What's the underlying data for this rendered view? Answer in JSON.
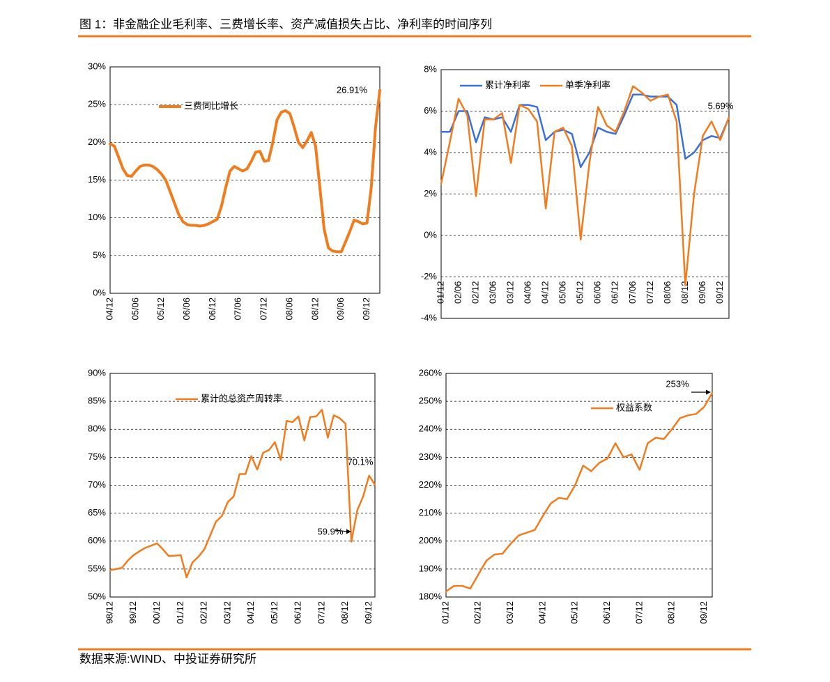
{
  "header": {
    "title": "图 1：非金融企业毛利率、三费增长率、资产减值损失占比、净利率的时间序列"
  },
  "footer": {
    "source": "数据来源:WIND、中投证券研究所"
  },
  "chart_data": [
    {
      "type": "line",
      "categories": [
        "04/12",
        null,
        null,
        null,
        null,
        null,
        "05/06",
        null,
        null,
        null,
        null,
        null,
        "05/12",
        null,
        null,
        null,
        null,
        null,
        "06/06",
        null,
        null,
        null,
        null,
        null,
        "06/12",
        null,
        null,
        null,
        null,
        null,
        "07/06",
        null,
        null,
        null,
        null,
        null,
        "07/12",
        null,
        null,
        null,
        null,
        null,
        "08/06",
        null,
        null,
        null,
        null,
        null,
        "08/12",
        null,
        null,
        null,
        null,
        null,
        "09/06",
        null,
        null,
        null,
        null,
        null,
        "09/12",
        null,
        null,
        null
      ],
      "series": [
        {
          "name": "三费同比增长",
          "color": "#f07c1e",
          "values": [
            19.8,
            19.5,
            18,
            16.5,
            15.6,
            15.5,
            16.2,
            16.8,
            17,
            17,
            16.8,
            16.4,
            15.8,
            15,
            13.5,
            12,
            10.5,
            9.5,
            9.1,
            9,
            9,
            8.9,
            9,
            9.2,
            9.5,
            9.8,
            11.5,
            14,
            16.2,
            16.8,
            16.5,
            16.2,
            16.5,
            17.5,
            18.7,
            18.8,
            17.5,
            17.6,
            20,
            23,
            24,
            24.2,
            23.8,
            22,
            20,
            19.3,
            20.2,
            21.3,
            19.5,
            14,
            8.5,
            6,
            5.6,
            5.5,
            5.5,
            6.8,
            8.2,
            9.7,
            9.5,
            9.2,
            9.3,
            14,
            22,
            26.91
          ]
        }
      ],
      "ylim": [
        0,
        30
      ],
      "yticks": [
        {
          "value": 0,
          "label": "0%"
        },
        {
          "value": 5,
          "label": "5%"
        },
        {
          "value": 10,
          "label": "10%"
        },
        {
          "value": 15,
          "label": "15%"
        },
        {
          "value": 20,
          "label": "20%"
        },
        {
          "value": 25,
          "label": "25%"
        },
        {
          "value": 30,
          "label": "30%"
        }
      ],
      "grid": true,
      "annotations": [
        {
          "text": "26.91%"
        }
      ]
    },
    {
      "type": "line",
      "categories": [
        "01/12",
        null,
        "02/06",
        null,
        "02/12",
        null,
        "03/06",
        null,
        "03/12",
        null,
        "04/06",
        null,
        "04/12",
        null,
        "05/06",
        null,
        "05/12",
        null,
        "06/06",
        null,
        "06/12",
        null,
        "07/06",
        null,
        "07/12",
        null,
        "08/06",
        null,
        "08/12",
        null,
        "09/06",
        null,
        "09/12",
        null
      ],
      "series": [
        {
          "name": "累计净利率",
          "color": "#3a6fd8",
          "values": [
            5.0,
            5.0,
            6.0,
            6.0,
            4.5,
            5.7,
            5.6,
            5.7,
            5.0,
            6.3,
            6.3,
            6.2,
            4.6,
            5.0,
            5.1,
            4.9,
            3.3,
            4.0,
            5.2,
            5.0,
            4.9,
            5.8,
            6.8,
            6.8,
            6.7,
            6.7,
            6.7,
            6.3,
            3.7,
            4.0,
            4.6,
            4.8,
            4.7,
            5.69
          ]
        },
        {
          "name": "单季净利率",
          "color": "#f07c1e",
          "values": [
            2.5,
            4.5,
            6.6,
            5.8,
            1.9,
            5.6,
            5.6,
            5.9,
            3.5,
            6.3,
            6.1,
            5.5,
            1.3,
            5.0,
            5.2,
            4.3,
            -0.2,
            3.5,
            6.2,
            5.3,
            5.0,
            6.0,
            7.2,
            6.9,
            6.5,
            6.7,
            6.8,
            5.5,
            -2.4,
            2.0,
            4.8,
            5.5,
            4.6,
            5.69
          ]
        }
      ],
      "ylim": [
        -4,
        8
      ],
      "yticks": [
        {
          "value": -4,
          "label": "-4%"
        },
        {
          "value": -2,
          "label": "-2%"
        },
        {
          "value": 0,
          "label": "0%"
        },
        {
          "value": 2,
          "label": "2%"
        },
        {
          "value": 4,
          "label": "4%"
        },
        {
          "value": 6,
          "label": "6%"
        },
        {
          "value": 8,
          "label": "8%"
        }
      ],
      "grid": true,
      "annotations": [
        {
          "text": "5.69%"
        }
      ]
    },
    {
      "type": "line",
      "categories": [
        "98/12",
        null,
        null,
        null,
        "99/12",
        null,
        null,
        null,
        "00/12",
        null,
        null,
        null,
        "01/12",
        null,
        null,
        null,
        "02/12",
        null,
        null,
        null,
        "03/12",
        null,
        null,
        null,
        "04/12",
        null,
        null,
        null,
        "05/12",
        null,
        null,
        null,
        "06/12",
        null,
        null,
        null,
        "07/12",
        null,
        null,
        null,
        "08/12",
        null,
        null,
        null,
        "09/12",
        null
      ],
      "series": [
        {
          "name": "累计的总资产周转率",
          "color": "#f07c1e",
          "values": [
            54.8,
            55,
            55.2,
            56.5,
            57.5,
            58.2,
            58.8,
            59.2,
            59.6,
            58.5,
            57.3,
            57.4,
            57.5,
            53.5,
            56.2,
            57.2,
            58.5,
            61,
            63.5,
            64.5,
            67,
            68,
            72,
            72,
            75.2,
            72.8,
            75.8,
            76.3,
            77.7,
            74.5,
            81.5,
            81.3,
            82.3,
            78,
            82.2,
            82.3,
            83.5,
            78.5,
            82.5,
            82,
            81,
            59.9,
            65.5,
            68,
            71.7,
            70.1
          ]
        }
      ],
      "ylim": [
        50,
        90
      ],
      "yticks": [
        {
          "value": 50,
          "label": "50%"
        },
        {
          "value": 55,
          "label": "55%"
        },
        {
          "value": 60,
          "label": "60%"
        },
        {
          "value": 65,
          "label": "65%"
        },
        {
          "value": 70,
          "label": "70%"
        },
        {
          "value": 75,
          "label": "75%"
        },
        {
          "value": 80,
          "label": "80%"
        },
        {
          "value": 85,
          "label": "85%"
        },
        {
          "value": 90,
          "label": "90%"
        }
      ],
      "grid": true,
      "annotations": [
        {
          "text": "70.1%"
        },
        {
          "text": "59.9%"
        }
      ]
    },
    {
      "type": "line",
      "categories": [
        "01/12",
        null,
        null,
        null,
        "02/12",
        null,
        null,
        null,
        "03/12",
        null,
        null,
        null,
        "04/12",
        null,
        null,
        null,
        "05/12",
        null,
        null,
        null,
        "06/12",
        null,
        null,
        null,
        "07/12",
        null,
        null,
        null,
        "08/12",
        null,
        null,
        null,
        "09/12",
        null
      ],
      "series": [
        {
          "name": "权益系数",
          "color": "#f07c1e",
          "values": [
            182,
            184,
            184,
            183,
            188,
            193,
            195.2,
            195.5,
            199,
            202,
            203,
            204,
            209,
            213.5,
            215.5,
            215,
            220,
            227,
            225,
            228,
            229.5,
            235,
            230,
            231,
            225.5,
            235,
            237,
            236.5,
            240,
            244,
            245,
            245.5,
            248,
            253
          ]
        }
      ],
      "ylim": [
        180,
        260
      ],
      "yticks": [
        {
          "value": 180,
          "label": "180%"
        },
        {
          "value": 190,
          "label": "190%"
        },
        {
          "value": 200,
          "label": "200%"
        },
        {
          "value": 210,
          "label": "210%"
        },
        {
          "value": 220,
          "label": "220%"
        },
        {
          "value": 230,
          "label": "230%"
        },
        {
          "value": 240,
          "label": "240%"
        },
        {
          "value": 250,
          "label": "250%"
        },
        {
          "value": 260,
          "label": "260%"
        }
      ],
      "grid": true,
      "annotations": [
        {
          "text": "253%"
        }
      ]
    }
  ]
}
